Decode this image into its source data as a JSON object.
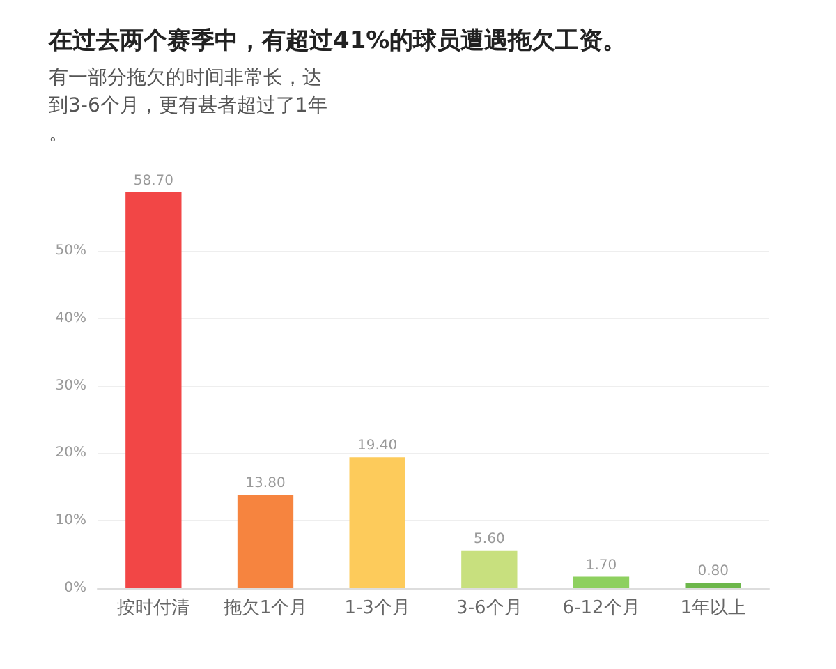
{
  "chart_data": {
    "type": "bar",
    "title": "在过去两个赛季中，有超过41%的球员遭遇拖欠工资。",
    "subtitle": "有一部分拖欠的时间非常长，达到3-6个月，更有甚者超过了1年。",
    "categories": [
      "按时付清",
      "拖欠1个月",
      "1-3个月",
      "3-6个月",
      "6-12个月",
      "1年以上"
    ],
    "values": [
      58.7,
      13.8,
      19.4,
      5.6,
      1.7,
      0.8
    ],
    "value_labels": [
      "58.70",
      "13.80",
      "19.40",
      "5.60",
      "1.70",
      "0.80"
    ],
    "colors": [
      "#f24646",
      "#f6843f",
      "#fdcb5b",
      "#c8e07e",
      "#8ed05f",
      "#6db74b"
    ],
    "ylim": [
      0,
      58.7
    ],
    "yticks": [
      {
        "value": 0,
        "label": "0%"
      },
      {
        "value": 10,
        "label": "10%"
      },
      {
        "value": 20,
        "label": "20%"
      },
      {
        "value": 30,
        "label": "30%"
      },
      {
        "value": 40,
        "label": "40%"
      },
      {
        "value": 50,
        "label": "50%"
      }
    ],
    "grid": "y"
  }
}
